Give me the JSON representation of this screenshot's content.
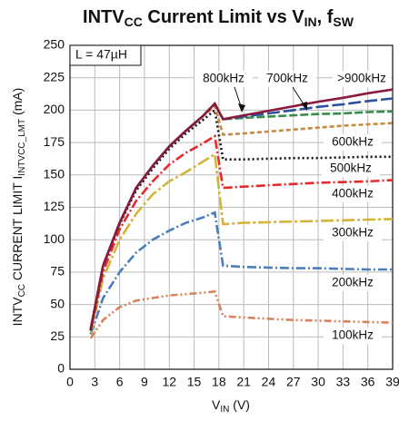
{
  "chart_data": {
    "type": "line",
    "title": [
      "INTV",
      "CC",
      " Current Limit vs V",
      "IN",
      ", f",
      "SW"
    ],
    "xlabel": [
      "V",
      "IN",
      " (V)"
    ],
    "ylabel": [
      "INTV",
      "CC",
      " CURRENT LIMIT I",
      "INTVCC_LMT",
      " (mA)"
    ],
    "annotation": "L = 47µH",
    "x": [
      2.5,
      4,
      6,
      8,
      10,
      12,
      14,
      16,
      17.5,
      18.5,
      21,
      24,
      27,
      30,
      33,
      36,
      39
    ],
    "series": [
      {
        "name": "100kHz",
        "color": "#d9825b",
        "dash": "8 3 2 3 2 3",
        "values": [
          24,
          38,
          48,
          53,
          55,
          57,
          58,
          59,
          60,
          41,
          40,
          39,
          38,
          37.5,
          37,
          36.5,
          36
        ]
      },
      {
        "name": "200kHz",
        "color": "#4a7ebb",
        "dash": "10 3 2 3",
        "values": [
          27,
          55,
          75,
          90,
          100,
          107,
          113,
          117,
          121,
          80,
          79,
          78.5,
          78,
          78,
          77.5,
          77,
          77
        ]
      },
      {
        "name": "300kHz",
        "color": "#d4b43c",
        "dash": "14 3 3 3",
        "values": [
          28,
          70,
          100,
          120,
          135,
          145,
          152,
          160,
          166,
          112,
          113,
          113.5,
          114,
          114.5,
          115,
          115.5,
          116
        ]
      },
      {
        "name": "400kHz",
        "color": "#e8292c",
        "dash": "10 3 2 3",
        "values": [
          30,
          75,
          108,
          130,
          145,
          158,
          167,
          174,
          180,
          140,
          141,
          142,
          143,
          144,
          144.5,
          145,
          146
        ]
      },
      {
        "name": "500kHz",
        "color": "#111111",
        "dash": "2 3",
        "values": [
          30,
          80,
          112,
          138,
          155,
          170,
          182,
          192,
          200,
          162,
          162,
          162.5,
          163,
          163,
          163.5,
          164,
          164
        ]
      },
      {
        "name": "600kHz",
        "color": "#c98a3a",
        "dash": "5 3",
        "values": [
          31,
          80,
          113,
          140,
          157,
          172,
          184,
          195,
          203,
          181,
          182,
          183.5,
          185,
          186.5,
          188,
          189,
          190
        ]
      },
      {
        "name": "700kHz",
        "color": "#3a8a4a",
        "dash": "9 3",
        "values": [
          31,
          80,
          113,
          140,
          157,
          172,
          184,
          195,
          205,
          193,
          194,
          195,
          196,
          197,
          197.5,
          198.5,
          199
        ]
      },
      {
        "name": "800kHz",
        "color": "#2e4e9e",
        "dash": "14 4",
        "values": [
          31,
          80,
          113,
          140,
          157,
          172,
          184,
          195,
          205,
          193,
          195,
          197.5,
          200,
          202.5,
          204.5,
          207,
          209
        ]
      },
      {
        "name": ">900kHz",
        "color": "#8b1a3a",
        "dash": "",
        "values": [
          31,
          80,
          113,
          140,
          157,
          172,
          184,
          195,
          205,
          193,
          196,
          199.5,
          203,
          206.5,
          209.5,
          213,
          216
        ]
      }
    ],
    "xlim": [
      0,
      39
    ],
    "xticks": [
      0,
      3,
      6,
      9,
      12,
      15,
      18,
      21,
      24,
      27,
      30,
      33,
      36,
      39
    ],
    "ylim": [
      0,
      250
    ],
    "yticks": [
      0,
      25,
      50,
      75,
      100,
      125,
      150,
      175,
      200,
      225,
      250
    ],
    "grid": true
  }
}
